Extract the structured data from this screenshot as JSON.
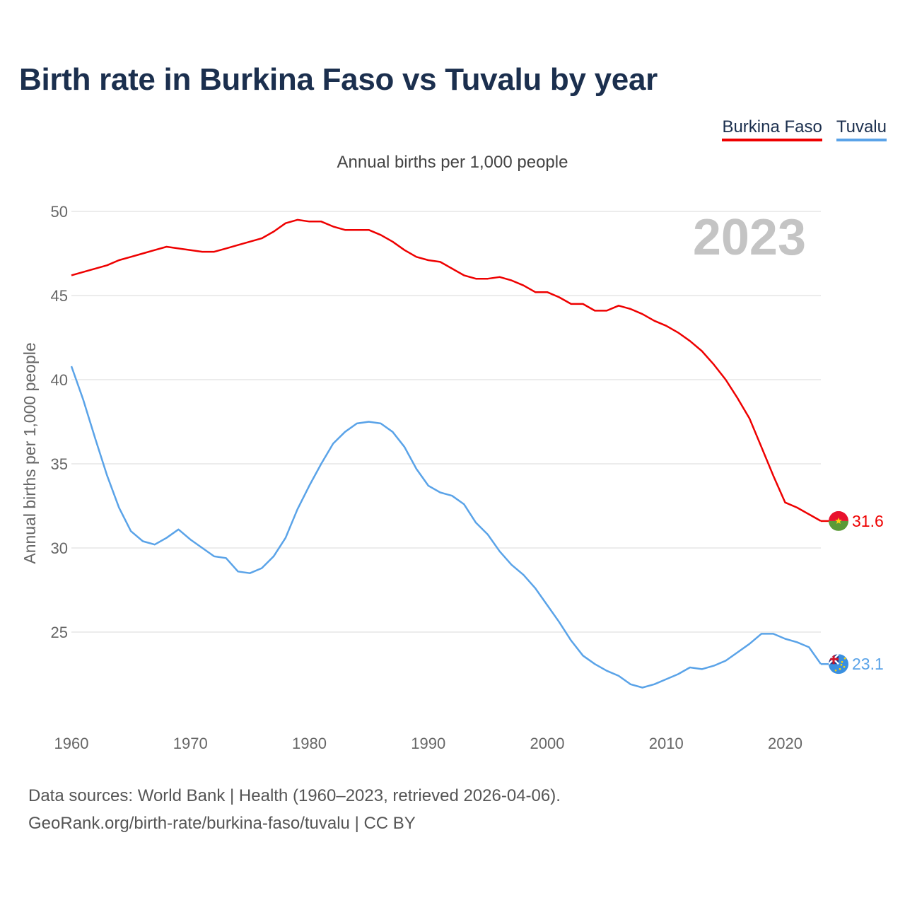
{
  "chart_data": {
    "type": "line",
    "title": "Birth rate in Burkina Faso vs Tuvalu by year",
    "subtitle": "Annual births per 1,000 people",
    "ylabel": "Annual births per 1,000 people",
    "xlabel": "",
    "year_watermark": "2023",
    "xlim": [
      1960,
      2023
    ],
    "ylim": [
      20,
      50
    ],
    "x_ticks": [
      1960,
      1970,
      1980,
      1990,
      2000,
      2010,
      2020
    ],
    "y_ticks": [
      25,
      30,
      35,
      40,
      45,
      50
    ],
    "grid": true,
    "legend_position": "top-right",
    "x": [
      1960,
      1961,
      1962,
      1963,
      1964,
      1965,
      1966,
      1967,
      1968,
      1969,
      1970,
      1971,
      1972,
      1973,
      1974,
      1975,
      1976,
      1977,
      1978,
      1979,
      1980,
      1981,
      1982,
      1983,
      1984,
      1985,
      1986,
      1987,
      1988,
      1989,
      1990,
      1991,
      1992,
      1993,
      1994,
      1995,
      1996,
      1997,
      1998,
      1999,
      2000,
      2001,
      2002,
      2003,
      2004,
      2005,
      2006,
      2007,
      2008,
      2009,
      2010,
      2011,
      2012,
      2013,
      2014,
      2015,
      2016,
      2017,
      2018,
      2019,
      2020,
      2021,
      2022,
      2023
    ],
    "series": [
      {
        "name": "Burkina Faso",
        "color": "#ee0000",
        "end_label": "31.6",
        "values": [
          46.2,
          46.4,
          46.6,
          46.8,
          47.1,
          47.3,
          47.5,
          47.7,
          47.9,
          47.8,
          47.7,
          47.6,
          47.6,
          47.8,
          48.0,
          48.2,
          48.4,
          48.8,
          49.3,
          49.5,
          49.4,
          49.4,
          49.1,
          48.9,
          48.9,
          48.9,
          48.6,
          48.2,
          47.7,
          47.3,
          47.1,
          47.0,
          46.6,
          46.2,
          46.0,
          46.0,
          46.1,
          45.9,
          45.6,
          45.2,
          45.2,
          44.9,
          44.5,
          44.5,
          44.1,
          44.1,
          44.4,
          44.2,
          43.9,
          43.5,
          43.2,
          42.8,
          42.3,
          41.7,
          40.9,
          40.0,
          38.9,
          37.7,
          36.0,
          34.3,
          32.7,
          32.4,
          32.0,
          31.6
        ]
      },
      {
        "name": "Tuvalu",
        "color": "#5aa3e8",
        "end_label": "23.1",
        "values": [
          40.8,
          38.8,
          36.5,
          34.3,
          32.4,
          31.0,
          30.4,
          30.2,
          30.6,
          31.1,
          30.5,
          30.0,
          29.5,
          29.4,
          28.6,
          28.5,
          28.8,
          29.5,
          30.6,
          32.3,
          33.7,
          35.0,
          36.2,
          36.9,
          37.4,
          37.5,
          37.4,
          36.9,
          36.0,
          34.7,
          33.7,
          33.3,
          33.1,
          32.6,
          31.5,
          30.8,
          29.8,
          29.0,
          28.4,
          27.6,
          26.6,
          25.6,
          24.5,
          23.6,
          23.1,
          22.7,
          22.4,
          21.9,
          21.7,
          21.9,
          22.2,
          22.5,
          22.9,
          22.8,
          23.0,
          23.3,
          23.8,
          24.3,
          24.9,
          24.9,
          24.6,
          24.4,
          24.1,
          23.1
        ]
      }
    ]
  },
  "footer": {
    "line1": "Data sources: World Bank | Health (1960–2023, retrieved 2026-04-06).",
    "line2": "GeoRank.org/birth-rate/burkina-faso/tuvalu | CC BY"
  }
}
